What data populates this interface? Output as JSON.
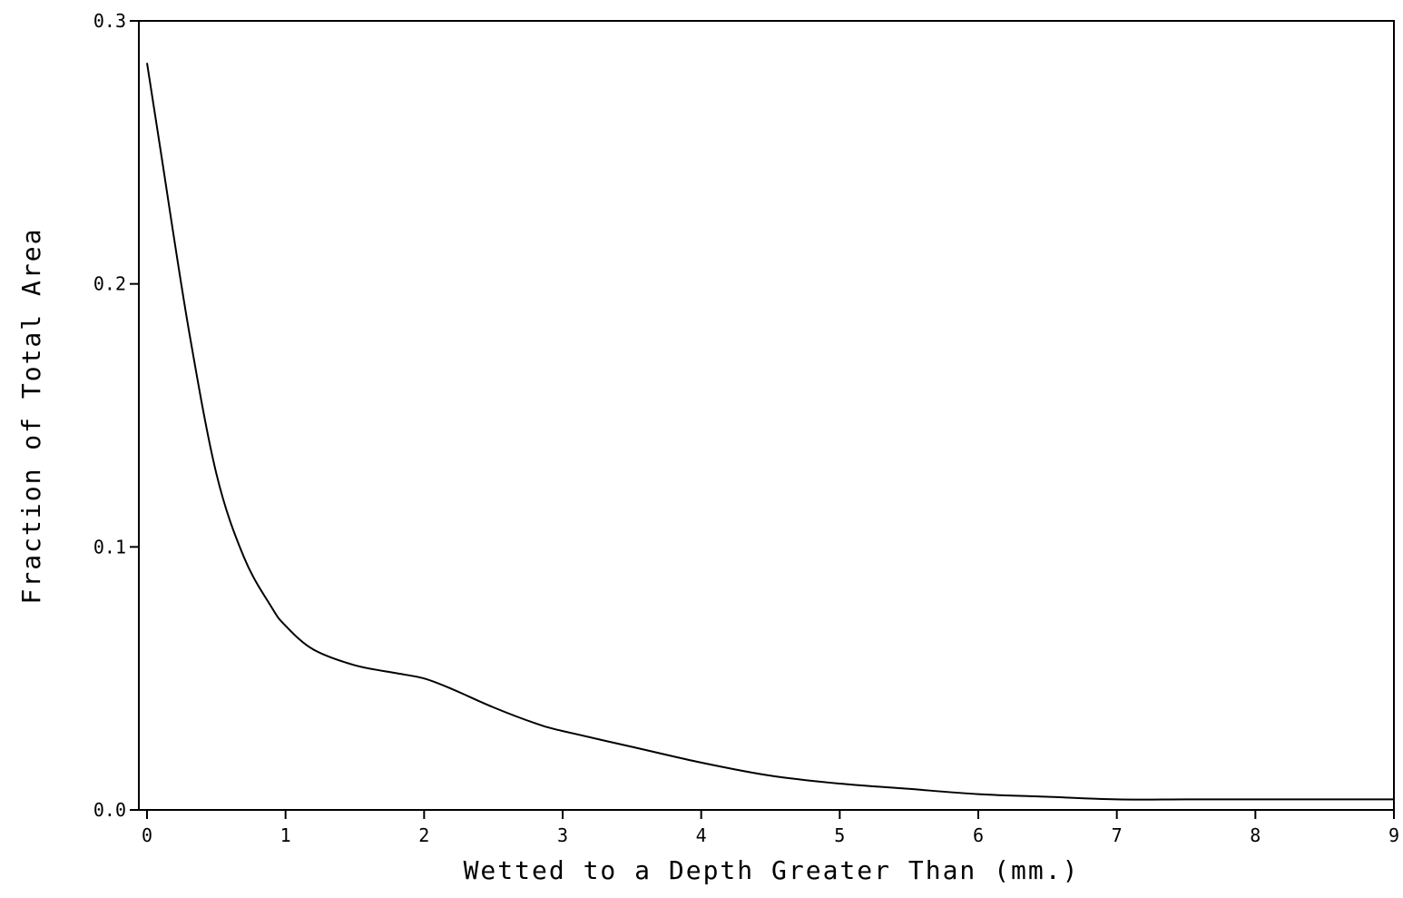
{
  "chart_data": {
    "type": "line",
    "title": "",
    "xlabel": "Wetted to a Depth Greater Than (mm.)",
    "ylabel": "Fraction of Total Area",
    "xlim": [
      0,
      9
    ],
    "ylim": [
      0,
      0.3
    ],
    "x_ticks": [
      0,
      1,
      2,
      3,
      4,
      5,
      6,
      7,
      8,
      9
    ],
    "x_tick_labels": [
      "0",
      "1",
      "2",
      "3",
      "4",
      "5",
      "6",
      "7",
      "8",
      "9"
    ],
    "y_ticks": [
      0,
      0.1,
      0.2,
      0.3
    ],
    "y_tick_labels": [
      "0.0",
      "0.1",
      "0.2",
      "0.3"
    ],
    "grid": false,
    "legend": "none",
    "colors": {
      "line": "#000000",
      "axes": "#000000",
      "background": "#ffffff"
    },
    "series": [
      {
        "x": [
          0,
          0.1,
          0.3,
          0.5,
          0.7,
          0.9,
          1.0,
          1.2,
          1.5,
          1.8,
          2.0,
          2.2,
          2.5,
          2.8,
          3.0,
          3.5,
          4.0,
          4.5,
          5.0,
          5.5,
          6.0,
          6.5,
          7.0,
          7.5,
          8.0,
          8.5,
          9.0
        ],
        "y": [
          0.284,
          0.25,
          0.183,
          0.128,
          0.096,
          0.077,
          0.07,
          0.061,
          0.055,
          0.052,
          0.05,
          0.046,
          0.039,
          0.033,
          0.03,
          0.024,
          0.018,
          0.013,
          0.01,
          0.008,
          0.006,
          0.005,
          0.004,
          0.004,
          0.004,
          0.004,
          0.004
        ]
      }
    ]
  }
}
